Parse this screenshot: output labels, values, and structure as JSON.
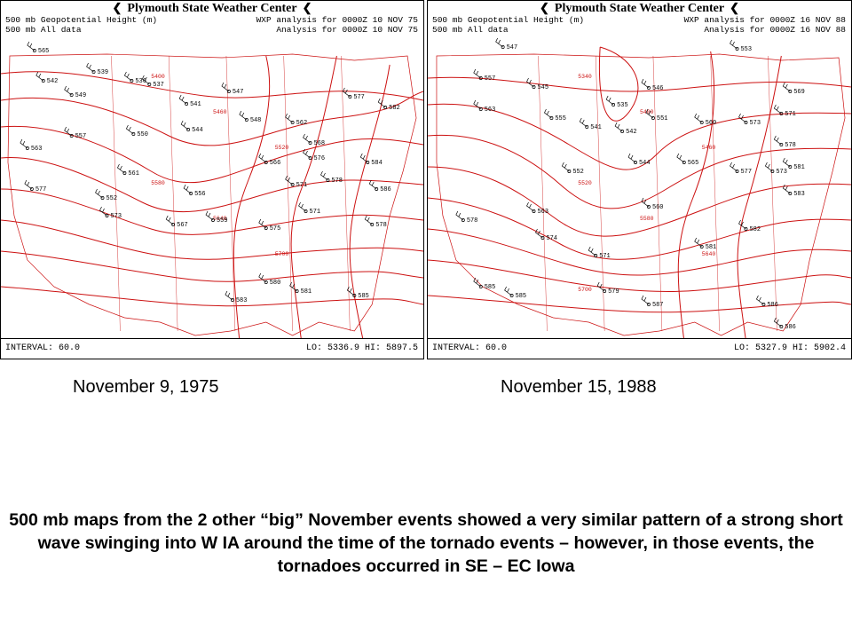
{
  "maps": [
    {
      "center_title": "Plymouth State Weather Center",
      "header_left_1": "500 mb Geopotential Height (m)",
      "header_left_2": "500 mb All data",
      "header_right_1": "WXP analysis for 0000Z 10 NOV 75",
      "header_right_2": "Analysis for 0000Z 10 NOV 75",
      "interval": "INTERVAL: 60.0",
      "lohi": "LO: 5336.9  HI: 5897.5",
      "date": "November 9, 1975",
      "contour_labels": [
        "5400",
        "5460",
        "5520",
        "5580",
        "5640",
        "5700"
      ],
      "station_labels": [
        "565",
        "542",
        "549",
        "539",
        "536",
        "537",
        "547",
        "541",
        "548",
        "562",
        "577",
        "582",
        "557",
        "550",
        "544",
        "566",
        "576",
        "578",
        "563",
        "561",
        "556",
        "559",
        "584",
        "586",
        "577",
        "573",
        "571",
        "567",
        "575",
        "580",
        "581",
        "583",
        "585",
        "578",
        "568",
        "552",
        "571"
      ]
    },
    {
      "center_title": "Plymouth State Weather Center",
      "header_left_1": "500 mb Geopotential Height (m)",
      "header_left_2": "500 mb All data",
      "header_right_1": "WXP analysis for 0000Z 16 NOV 88",
      "header_right_2": "Analysis for 0000Z 16 NOV 88",
      "interval": "INTERVAL: 60.0",
      "lohi": "LO: 5327.9  HI: 5902.4",
      "date": "November 15, 1988",
      "contour_labels": [
        "5340",
        "5400",
        "5460",
        "5520",
        "5580",
        "5640",
        "5700"
      ],
      "station_labels": [
        "547",
        "553",
        "557",
        "545",
        "546",
        "535",
        "551",
        "569",
        "563",
        "555",
        "541",
        "542",
        "560",
        "573",
        "571",
        "573",
        "544",
        "565",
        "578",
        "581",
        "585",
        "552",
        "577",
        "583",
        "563",
        "560",
        "578",
        "574",
        "571",
        "581",
        "582",
        "585",
        "579",
        "586",
        "587",
        "586"
      ]
    }
  ],
  "caption": "500 mb maps from the 2 other “big” November events showed a very similar pattern of a strong short wave swinging into W IA around the time of the tornado events – however, in those events, the tornadoes occurred in SE – EC Iowa",
  "colors": {
    "contour": "#cc1111",
    "station": "#000000",
    "background": "#ffffff"
  }
}
